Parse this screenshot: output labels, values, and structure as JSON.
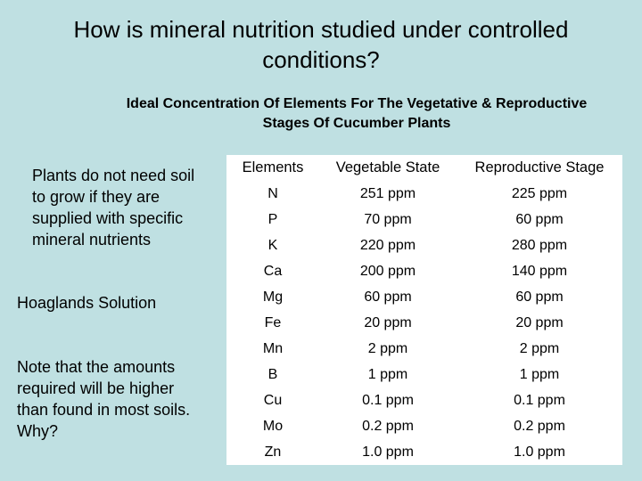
{
  "slide": {
    "title_line1": "How is mineral nutrition studied under controlled",
    "title_line2": "conditions?",
    "subtitle_line1": "Ideal Concentration Of Elements For The Vegetative & Reproductive",
    "subtitle_line2": "Stages Of Cucumber Plants",
    "side_text_1": "Plants do not need soil to grow if they are supplied with specific mineral nutrients",
    "side_text_2": "Hoaglands Solution",
    "side_text_3": "Note that the amounts required will be higher than found in most soils.  Why?"
  },
  "table": {
    "headers": [
      "Elements",
      "Vegetable State",
      "Reproductive Stage"
    ],
    "rows": [
      [
        "N",
        "251 ppm",
        "225 ppm"
      ],
      [
        "P",
        "70 ppm",
        "60 ppm"
      ],
      [
        "K",
        "220 ppm",
        "280 ppm"
      ],
      [
        "Ca",
        "200 ppm",
        "140 ppm"
      ],
      [
        "Mg",
        "60 ppm",
        "60 ppm"
      ],
      [
        "Fe",
        "20 ppm",
        "20 ppm"
      ],
      [
        "Mn",
        "2 ppm",
        "2 ppm"
      ],
      [
        "B",
        "1 ppm",
        "1 ppm"
      ],
      [
        "Cu",
        "0.1 ppm",
        "0.1 ppm"
      ],
      [
        "Mo",
        "0.2 ppm",
        "0.2 ppm"
      ],
      [
        "Zn",
        "1.0 ppm",
        "1.0 ppm"
      ]
    ]
  }
}
